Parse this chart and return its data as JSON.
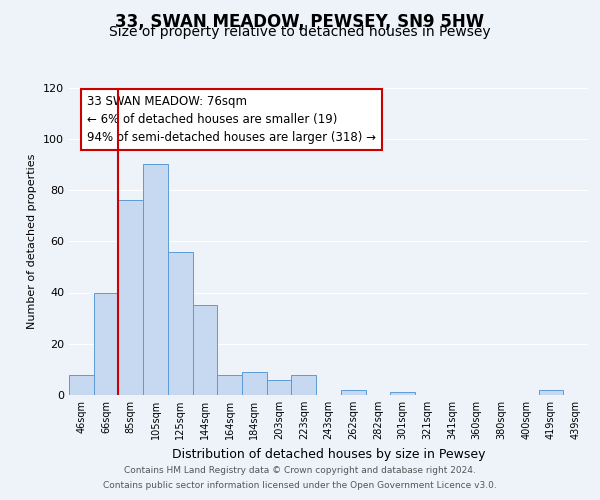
{
  "title": "33, SWAN MEADOW, PEWSEY, SN9 5HW",
  "subtitle": "Size of property relative to detached houses in Pewsey",
  "xlabel": "Distribution of detached houses by size in Pewsey",
  "ylabel": "Number of detached properties",
  "categories": [
    "46sqm",
    "66sqm",
    "85sqm",
    "105sqm",
    "125sqm",
    "144sqm",
    "164sqm",
    "184sqm",
    "203sqm",
    "223sqm",
    "243sqm",
    "262sqm",
    "282sqm",
    "301sqm",
    "321sqm",
    "341sqm",
    "360sqm",
    "380sqm",
    "400sqm",
    "419sqm",
    "439sqm"
  ],
  "values": [
    8,
    40,
    76,
    90,
    56,
    35,
    8,
    9,
    6,
    8,
    0,
    2,
    0,
    1,
    0,
    0,
    0,
    0,
    0,
    2,
    0
  ],
  "bar_color": "#c6d9f0",
  "bar_edge_color": "#5b9bd5",
  "red_line_x": 1.48,
  "red_line_label": "33 SWAN MEADOW: 76sqm",
  "annotation_smaller": "← 6% of detached houses are smaller (19)",
  "annotation_larger": "94% of semi-detached houses are larger (318) →",
  "ylim": [
    0,
    120
  ],
  "yticks": [
    0,
    20,
    40,
    60,
    80,
    100,
    120
  ],
  "footer_line1": "Contains HM Land Registry data © Crown copyright and database right 2024.",
  "footer_line2": "Contains public sector information licensed under the Open Government Licence v3.0.",
  "background_color": "#eef3fa",
  "plot_background_color": "#eef3fa",
  "title_fontsize": 12,
  "subtitle_fontsize": 10,
  "annotation_box_color": "#ffffff",
  "annotation_box_edge_color": "#cc0000",
  "red_line_color": "#cc0000",
  "grid_color": "#ffffff",
  "tick_label_fontsize": 7,
  "ylabel_fontsize": 8,
  "xlabel_fontsize": 9
}
